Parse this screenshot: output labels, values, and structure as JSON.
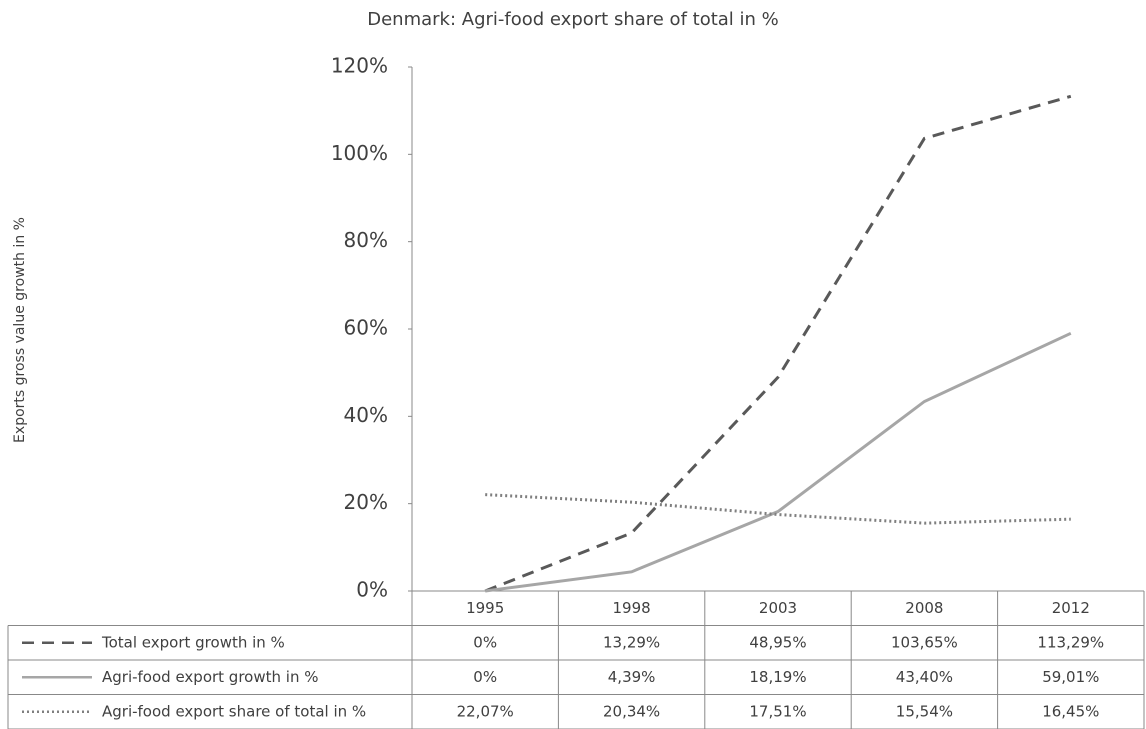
{
  "chart_data": {
    "type": "line",
    "title": "Denmark: Agri-food export share of total in %",
    "y_label": "Exports gross value growth in %",
    "categories": [
      "1995",
      "1998",
      "2003",
      "2008",
      "2012"
    ],
    "series": [
      {
        "name": "Total export growth in %",
        "color": "#595959",
        "dash": "dashed",
        "values": [
          0,
          13.29,
          48.95,
          103.65,
          113.29
        ],
        "value_labels": [
          "0%",
          "13,29%",
          "48,95%",
          "103,65%",
          "113,29%"
        ]
      },
      {
        "name": "Agri-food export growth in %",
        "color": "#a6a6a6",
        "dash": "solid",
        "values": [
          0,
          4.39,
          18.19,
          43.4,
          59.01
        ],
        "value_labels": [
          "0%",
          "4,39%",
          "18,19%",
          "43,40%",
          "59,01%"
        ]
      },
      {
        "name": "Agri-food export share of total in %",
        "color": "#7f7f7f",
        "dash": "dotted",
        "values": [
          22.07,
          20.34,
          17.51,
          15.54,
          16.45
        ],
        "value_labels": [
          "22,07%",
          "20,34%",
          "17,51%",
          "15,54%",
          "16,45%"
        ]
      }
    ],
    "ylim": [
      0,
      120
    ],
    "yticks": [
      {
        "value": 0,
        "label": "0%"
      },
      {
        "value": 20,
        "label": "20%"
      },
      {
        "value": 40,
        "label": "40%"
      },
      {
        "value": 60,
        "label": "60%"
      },
      {
        "value": 80,
        "label": "80%"
      },
      {
        "value": 100,
        "label": "100%"
      },
      {
        "value": 120,
        "label": "120%"
      }
    ],
    "grid": false,
    "data_table": true
  }
}
